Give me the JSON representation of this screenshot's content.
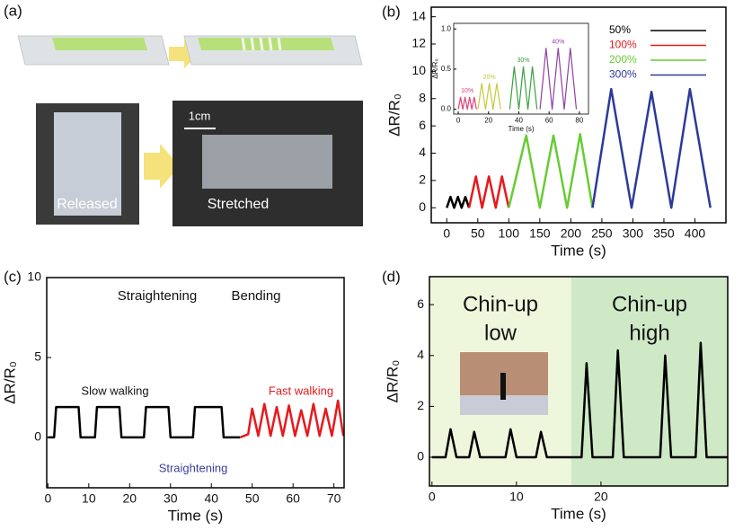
{
  "panel_a": {
    "label": "(a)",
    "photo_labels": [
      "Released",
      "Stretched"
    ],
    "scale_bar": "1cm"
  },
  "chart_data": [
    {
      "type": "line",
      "label": "(b)",
      "xlabel": "Time (s)",
      "ylabel": "ΔR/R₀",
      "xlim": [
        -25,
        450
      ],
      "ylim": [
        -1.1,
        14.7
      ],
      "xticks": [
        0,
        50,
        100,
        150,
        200,
        250,
        300,
        350,
        400
      ],
      "yticks": [
        0,
        2,
        4,
        6,
        8,
        10,
        12,
        14
      ],
      "legend": "top-right",
      "series": [
        {
          "name": "50%",
          "color": "#000000",
          "x": [
            0,
            6,
            12,
            18,
            24,
            30,
            36
          ],
          "values": [
            0,
            0.8,
            0,
            0.8,
            0,
            0.8,
            0
          ]
        },
        {
          "name": "100%",
          "color": "#e8191c",
          "x": [
            36,
            47,
            57,
            68,
            79,
            89,
            100
          ],
          "values": [
            0,
            2.3,
            0,
            2.3,
            0,
            2.3,
            0
          ]
        },
        {
          "name": "200%",
          "color": "#66cc33",
          "x": [
            100,
            128,
            150,
            172,
            194,
            215,
            235
          ],
          "values": [
            0,
            5.3,
            0,
            5.3,
            0,
            5.4,
            0
          ]
        },
        {
          "name": "300%",
          "color": "#2b3a9a",
          "x": [
            235,
            265,
            298,
            330,
            362,
            392,
            425
          ],
          "values": [
            0,
            8.7,
            0,
            8.5,
            0,
            8.7,
            0
          ]
        }
      ]
    },
    {
      "type": "line",
      "xlabel": "Time (s)",
      "ylabel": "ΔR/R₀",
      "xlim": [
        -3,
        86
      ],
      "ylim": [
        -0.06,
        1.07
      ],
      "xticks": [
        0,
        20,
        40,
        60,
        80
      ],
      "yticks": [
        {
          "value": 0,
          "label": "0.0"
        },
        {
          "value": 0.5,
          "label": "0.5"
        },
        {
          "value": 1,
          "label": "1.0"
        }
      ],
      "series": [
        {
          "name": "10%",
          "color": "#e0407a",
          "x": [
            0,
            1.5,
            3,
            4.5,
            6,
            7.5,
            9,
            10.5,
            12
          ],
          "values": [
            0,
            0.15,
            0,
            0.15,
            0,
            0.15,
            0,
            0.15,
            0
          ]
        },
        {
          "name": "20%",
          "color": "#c8c83a",
          "x": [
            13,
            15.5,
            18,
            20.5,
            23,
            25.5,
            28
          ],
          "values": [
            0,
            0.32,
            0,
            0.32,
            0,
            0.32,
            0
          ]
        },
        {
          "name": "30%",
          "color": "#3aa040",
          "x": [
            34,
            37,
            40,
            43,
            46,
            49,
            52
          ],
          "values": [
            0,
            0.53,
            0,
            0.53,
            0,
            0.53,
            0
          ]
        },
        {
          "name": "40%",
          "color": "#9040a0",
          "x": [
            54,
            58,
            62,
            66,
            70,
            74,
            78
          ],
          "values": [
            0,
            0.76,
            0,
            0.76,
            0,
            0.76,
            0
          ]
        }
      ]
    },
    {
      "type": "line",
      "label": "(c)",
      "xlabel": "Time (s)",
      "ylabel": "ΔR/R₀",
      "xlim": [
        -0.3,
        72.5
      ],
      "ylim": [
        -3.15,
        10
      ],
      "xticks": [
        0,
        10,
        20,
        30,
        40,
        50,
        60,
        70
      ],
      "yticks": [
        0,
        5,
        10
      ],
      "annotations": [
        "Straightening",
        "Bending",
        "Slow walking",
        "Fast walking",
        "Straightening"
      ],
      "series": [
        {
          "color": "#000000",
          "x": [
            0,
            1.5,
            2,
            7.5,
            8,
            11.5,
            12,
            17.5,
            18,
            23.5,
            24,
            29.5,
            30,
            35.5,
            36,
            42.5,
            43,
            47
          ],
          "values": [
            0,
            0,
            1.9,
            1.9,
            0,
            0,
            1.9,
            1.9,
            0,
            0,
            1.9,
            1.9,
            0,
            0,
            1.9,
            1.9,
            0,
            0
          ]
        },
        {
          "color": "#e8191c",
          "x": [
            47,
            49,
            50,
            51.5,
            53,
            54.5,
            56,
            57.5,
            59,
            60.5,
            62,
            63.5,
            65,
            66.5,
            68,
            69.5,
            71,
            72.3
          ],
          "values": [
            0,
            0.2,
            1.8,
            0.1,
            2.1,
            0.1,
            1.9,
            0.1,
            2.0,
            0.1,
            1.7,
            0.1,
            2.1,
            0.1,
            1.8,
            0.1,
            2.3,
            0.1
          ]
        }
      ]
    },
    {
      "type": "line",
      "label": "(d)",
      "xlabel": "Time (s)",
      "ylabel": "ΔR/R₀",
      "xlim": [
        -0.3,
        35
      ],
      "ylim": [
        -1.13,
        7.1
      ],
      "xticks": [
        0,
        10,
        20
      ],
      "yticks": [
        0,
        2,
        4,
        6
      ],
      "regions": [
        {
          "label": [
            "Chin-up",
            "low"
          ],
          "color": "#eef6dc",
          "x": [
            -0.3,
            16.5
          ]
        },
        {
          "label": [
            "Chin-up",
            "high"
          ],
          "color": "#cfe9c6",
          "x": [
            16.5,
            35
          ]
        }
      ],
      "series": [
        {
          "color": "#000000",
          "x": [
            0,
            1.6,
            2.2,
            2.9,
            4.4,
            5.0,
            5.7,
            8.7,
            9.3,
            10.0,
            12.3,
            12.9,
            13.6,
            17.7,
            18.3,
            19.0,
            21.4,
            22.0,
            22.7,
            27.0,
            27.6,
            28.3,
            31.2,
            31.8,
            32.5,
            35
          ],
          "values": [
            0,
            0,
            1.1,
            0,
            0,
            1.0,
            0,
            0,
            1.1,
            0,
            0,
            1.0,
            0,
            0,
            3.7,
            0,
            0,
            4.2,
            0,
            0,
            4.0,
            0,
            0,
            4.5,
            0,
            0
          ]
        }
      ]
    }
  ]
}
